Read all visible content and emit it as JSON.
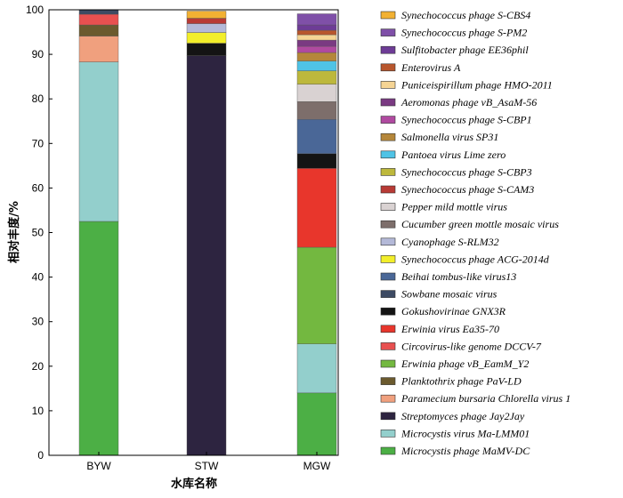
{
  "chart_data": {
    "type": "bar",
    "stacked": true,
    "ylabel": "相对丰度/%",
    "xlabel": "水库名称",
    "ylim": [
      0,
      100
    ],
    "yticks": [
      0,
      10,
      20,
      30,
      40,
      50,
      60,
      70,
      80,
      90,
      100
    ],
    "categories": [
      "BYW",
      "STW",
      "MGW"
    ],
    "legend_position": "right",
    "series": [
      {
        "name": "Microcystis phage MaMV-DC",
        "color": "#4caf45",
        "values": [
          52.5,
          0,
          14
        ]
      },
      {
        "name": "Microcystis virus Ma-LMM01",
        "color": "#93cfcc",
        "values": [
          35.8,
          0,
          11
        ]
      },
      {
        "name": "Streptomyces phage Jay2Jay",
        "color": "#2d2440",
        "values": [
          0,
          89.7,
          0
        ]
      },
      {
        "name": "Paramecium bursaria Chlorella virus 1",
        "color": "#f0a07e",
        "values": [
          5.8,
          0,
          0
        ]
      },
      {
        "name": "Planktothrix phage PaV-LD",
        "color": "#6b5a2e",
        "values": [
          2.5,
          0,
          0
        ]
      },
      {
        "name": "Erwinia phage vB_EamM_Y2",
        "color": "#73b840",
        "values": [
          0,
          0,
          21.7
        ]
      },
      {
        "name": "Circovirus-like genome DCCV-7",
        "color": "#e85050",
        "values": [
          2.4,
          0,
          0
        ]
      },
      {
        "name": "Erwinia virus Ea35-70",
        "color": "#e8362c",
        "values": [
          0,
          0,
          17.7
        ]
      },
      {
        "name": "Gokushovirinae GNX3R",
        "color": "#141414",
        "values": [
          0,
          2.8,
          3.3
        ]
      },
      {
        "name": "Sowbane mosaic virus",
        "color": "#3d4a63",
        "values": [
          1.0,
          0,
          0
        ]
      },
      {
        "name": "Beihai tombus-like virus13",
        "color": "#4a6797",
        "values": [
          0,
          0,
          7.7
        ]
      },
      {
        "name": "Synechococcus phage ACG-2014d",
        "color": "#f2ee2a",
        "values": [
          0,
          2.4,
          0
        ]
      },
      {
        "name": "Cyanophage S-RLM32",
        "color": "#b4b9d8",
        "values": [
          0,
          2.0,
          0
        ]
      },
      {
        "name": "Cucumber green mottle mosaic virus",
        "color": "#7d6e6b",
        "values": [
          0,
          0,
          4.0
        ]
      },
      {
        "name": "Pepper mild mottle virus",
        "color": "#d9d2d2",
        "values": [
          0,
          0,
          3.9
        ]
      },
      {
        "name": "Synechococcus phage S-CAM3",
        "color": "#b83a35",
        "values": [
          0,
          1.2,
          0
        ]
      },
      {
        "name": "Synechococcus phage S-CBP3",
        "color": "#bdb83c",
        "values": [
          0,
          0,
          3.0
        ]
      },
      {
        "name": "Pantoea virus Lime zero",
        "color": "#4fc3e6",
        "values": [
          0,
          0,
          2.2
        ]
      },
      {
        "name": "Salmonella virus SP31",
        "color": "#b5873a",
        "values": [
          0,
          0,
          1.9
        ]
      },
      {
        "name": "Synechococcus phage S-CBP1",
        "color": "#b04aa0",
        "values": [
          0,
          0,
          1.4
        ]
      },
      {
        "name": "Aeromonas phage vB_AsaM-56",
        "color": "#7a3a82",
        "values": [
          0,
          0,
          1.4
        ]
      },
      {
        "name": "Puniceispirillum phage HMO-2011",
        "color": "#f5d494",
        "values": [
          0,
          0,
          1.2
        ]
      },
      {
        "name": "Enterovirus A",
        "color": "#b8562d",
        "values": [
          0,
          0,
          1.0
        ]
      },
      {
        "name": "Sulfitobacter phage EE36phil",
        "color": "#6e3c96",
        "values": [
          0,
          0,
          1.2
        ]
      },
      {
        "name": "Synechococcus phage S-PM2",
        "color": "#7f50a8",
        "values": [
          0,
          0,
          2.5
        ]
      },
      {
        "name": "Synechococcus phage S-CBS4",
        "color": "#f2b133",
        "values": [
          0,
          1.6,
          0
        ]
      }
    ]
  }
}
